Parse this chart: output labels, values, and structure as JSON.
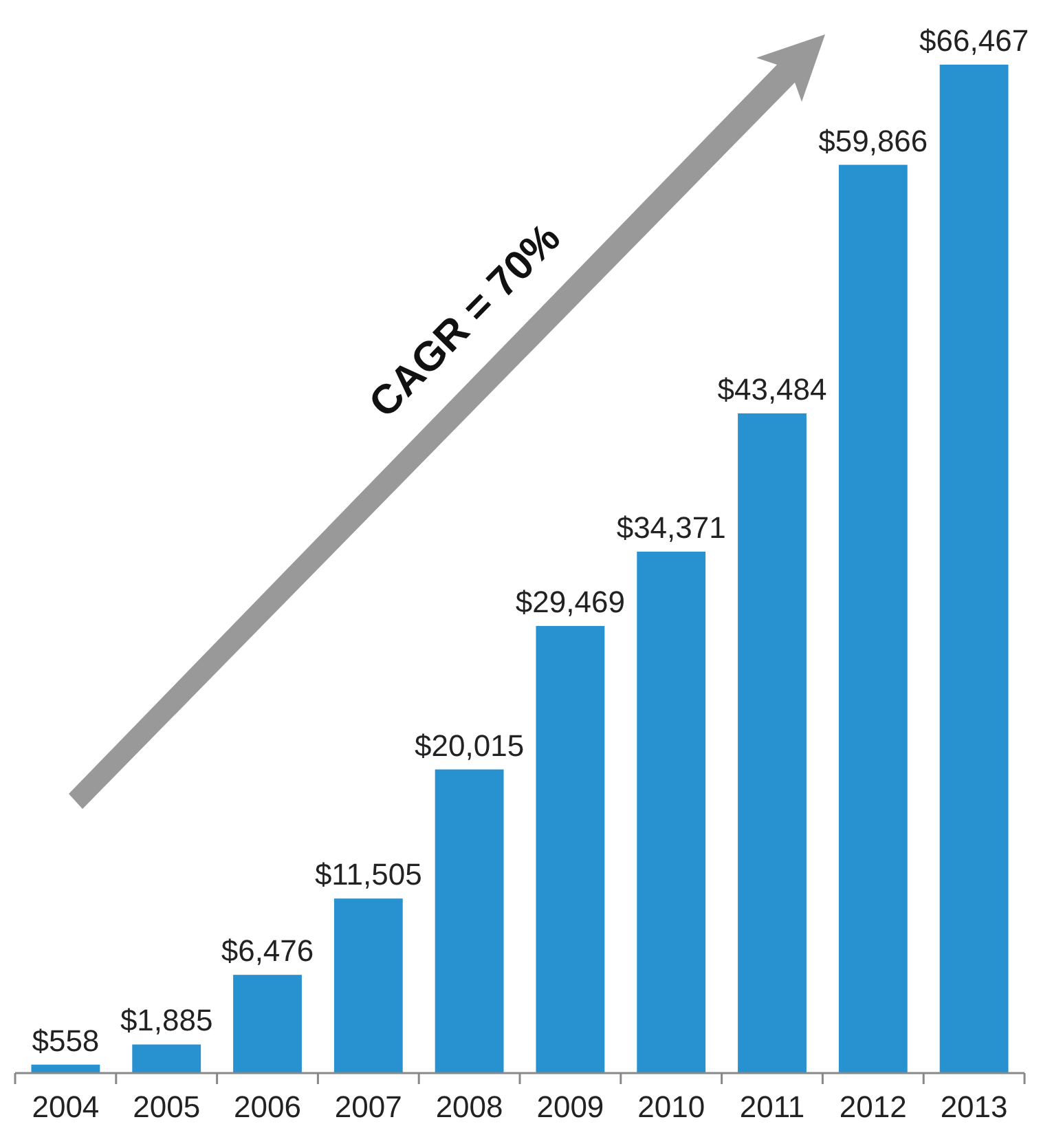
{
  "chart_data": {
    "type": "bar",
    "categories": [
      "2004",
      "2005",
      "2006",
      "2007",
      "2008",
      "2009",
      "2010",
      "2011",
      "2012",
      "2013"
    ],
    "values": [
      558,
      1885,
      6476,
      11505,
      20015,
      29469,
      34371,
      43484,
      59866,
      66467
    ],
    "value_labels": [
      "$558",
      "$1,885",
      "$6,476",
      "$11,505",
      "$20,015",
      "$29,469",
      "$34,371",
      "$43,484",
      "$59,866",
      "$66,467"
    ],
    "color": "#2891cf",
    "annotations": [
      "CAGR = 70%"
    ]
  }
}
